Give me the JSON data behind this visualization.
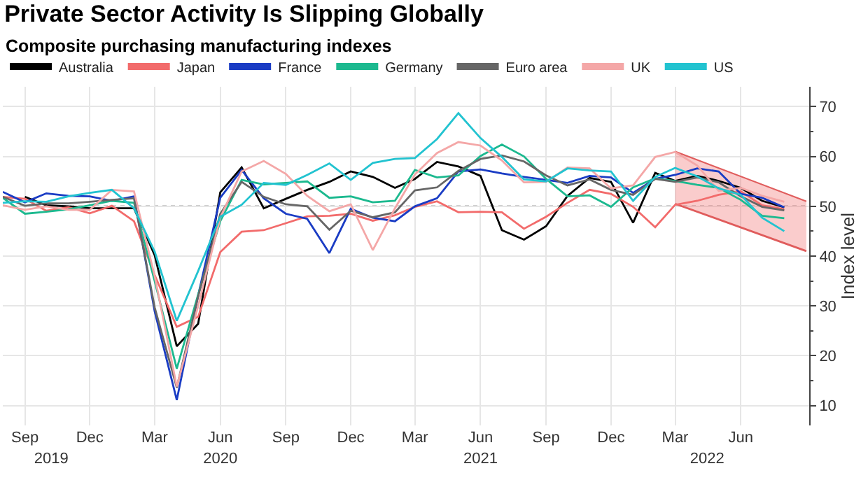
{
  "chart_data": {
    "type": "line",
    "title": "Private Sector Activity Is Slipping Globally",
    "subtitle": "Composite purchasing manufacturing indexes",
    "ylabel": "Index level",
    "x": [
      "2019-08",
      "2019-09",
      "2019-10",
      "2019-11",
      "2019-12",
      "2020-01",
      "2020-02",
      "2020-03",
      "2020-04",
      "2020-05",
      "2020-06",
      "2020-07",
      "2020-08",
      "2020-09",
      "2020-10",
      "2020-11",
      "2020-12",
      "2021-01",
      "2021-02",
      "2021-03",
      "2021-04",
      "2021-05",
      "2021-06",
      "2021-07",
      "2021-08",
      "2021-09",
      "2021-10",
      "2021-11",
      "2021-12",
      "2022-01",
      "2022-02",
      "2022-03",
      "2022-04",
      "2022-05",
      "2022-06",
      "2022-07",
      "2022-08"
    ],
    "series": [
      {
        "name": "Australia",
        "color": "#000000",
        "values": [
          null,
          51.9,
          50.2,
          50.0,
          49.6,
          49.6,
          49.6,
          40.2,
          21.9,
          26.4,
          52.8,
          57.8,
          49.6,
          51.5,
          53.3,
          54.9,
          57.0,
          55.9,
          53.7,
          55.5,
          58.9,
          58.0,
          56.1,
          45.2,
          43.3,
          46.0,
          52.1,
          55.7,
          54.9,
          46.7,
          56.7,
          55.1,
          56.1,
          55.1,
          53.7,
          51.1,
          49.8
        ]
      },
      {
        "name": "Japan",
        "color": "#f26b6b",
        "values": [
          51.9,
          51.5,
          49.1,
          49.8,
          48.6,
          50.1,
          47.0,
          36.2,
          25.8,
          27.8,
          40.8,
          44.9,
          45.2,
          46.6,
          48.0,
          48.1,
          48.5,
          47.1,
          48.2,
          49.9,
          51.0,
          48.8,
          48.9,
          48.8,
          45.5,
          47.9,
          50.7,
          53.3,
          52.5,
          49.9,
          45.8,
          50.3,
          51.1,
          52.3,
          53.0,
          50.2,
          49.4
        ]
      },
      {
        "name": "France",
        "color": "#1a3cc4",
        "values": [
          52.9,
          50.8,
          52.6,
          52.1,
          52.0,
          51.1,
          52.0,
          28.9,
          11.1,
          32.1,
          51.7,
          57.3,
          51.6,
          48.5,
          47.5,
          40.6,
          49.5,
          47.7,
          47.0,
          50.0,
          51.6,
          57.0,
          57.4,
          56.6,
          55.9,
          55.3,
          54.7,
          56.1,
          55.8,
          52.7,
          55.5,
          56.3,
          57.6,
          57.0,
          52.5,
          51.7,
          49.8
        ]
      },
      {
        "name": "Germany",
        "color": "#1cb98f",
        "values": [
          51.7,
          48.5,
          48.9,
          49.4,
          50.2,
          51.1,
          50.7,
          35.0,
          17.4,
          32.3,
          47.0,
          55.3,
          54.4,
          54.7,
          55.0,
          51.7,
          52.0,
          50.8,
          51.1,
          57.3,
          55.8,
          56.2,
          60.1,
          62.4,
          60.0,
          55.5,
          52.0,
          52.2,
          49.9,
          53.8,
          55.6,
          55.1,
          54.3,
          53.7,
          51.3,
          48.1,
          47.6
        ]
      },
      {
        "name": "Euro area",
        "color": "#666666",
        "values": [
          51.9,
          50.1,
          50.6,
          50.6,
          50.9,
          51.3,
          51.6,
          29.7,
          13.6,
          31.9,
          48.5,
          54.9,
          51.9,
          50.4,
          50.0,
          45.3,
          49.1,
          47.8,
          48.8,
          53.2,
          53.8,
          57.1,
          59.5,
          60.2,
          59.0,
          56.2,
          54.2,
          55.4,
          53.3,
          52.3,
          55.5,
          54.9,
          55.8,
          54.8,
          52.0,
          49.9,
          49.2
        ]
      },
      {
        "name": "UK",
        "color": "#f4a7a7",
        "values": [
          50.2,
          49.3,
          50.0,
          49.3,
          49.3,
          53.3,
          53.0,
          36.0,
          13.8,
          30.0,
          47.7,
          57.0,
          59.1,
          56.5,
          52.1,
          49.0,
          50.4,
          41.2,
          49.6,
          56.4,
          60.7,
          62.9,
          62.2,
          59.2,
          54.8,
          54.9,
          57.8,
          57.6,
          53.6,
          54.2,
          59.9,
          60.9,
          58.2,
          53.1,
          53.7,
          52.1,
          50.9
        ]
      },
      {
        "name": "US",
        "color": "#22c3d0",
        "values": [
          50.7,
          51.0,
          50.9,
          52.0,
          52.7,
          53.3,
          49.6,
          40.9,
          27.0,
          37.0,
          47.9,
          50.3,
          54.7,
          54.3,
          56.3,
          58.6,
          55.3,
          58.7,
          59.5,
          59.7,
          63.5,
          68.7,
          63.7,
          59.9,
          55.4,
          55.0,
          57.6,
          57.2,
          57.0,
          51.1,
          55.9,
          57.7,
          56.0,
          53.6,
          52.3,
          47.7,
          45.0
        ]
      },
      {
        "type": "line",
        "color": "#e05c5c",
        "x": [
          "2022-03-01",
          "2022-09-01"
        ],
        "values": [
          50.5,
          41
        ]
      },
      {
        "type": "area",
        "color": "#e05c5c",
        "x": [
          "2022-03-01",
          "2022-09-01"
        ],
        "values": [
          61,
          51
        ]
      }
    ],
    "xlim": [
      "2019-08-01",
      "2022-09-05"
    ],
    "xticks": [
      {
        "value": "2019-09-01",
        "label": "Sep"
      },
      {
        "value": "2019-12-01",
        "label": "Dec"
      },
      {
        "value": "2020-03-01",
        "label": "Mar"
      },
      {
        "value": "2020-06-01",
        "label": "Jun"
      },
      {
        "value": "2020-09-01",
        "label": "Sep"
      },
      {
        "value": "2020-12-01",
        "label": "Dec"
      },
      {
        "value": "2021-03-01",
        "label": "Mar"
      },
      {
        "value": "2021-06-01",
        "label": "Jun"
      },
      {
        "value": "2021-09-01",
        "label": "Sep"
      },
      {
        "value": "2021-12-01",
        "label": "Dec"
      },
      {
        "value": "2022-03-01",
        "label": "Mar"
      },
      {
        "value": "2022-06-01",
        "label": "Jun"
      }
    ],
    "x2lim": [
      "2019-08-01",
      "2022-09-05"
    ],
    "x2ticks": [
      {
        "value": "2019-10-08",
        "label": "2019"
      },
      {
        "value": "2020-06-01",
        "label": "2020"
      },
      {
        "value": "2021-06-01",
        "label": "2021"
      },
      {
        "value": "2022-04-15",
        "label": "2022"
      }
    ],
    "ylim": [
      6,
      74
    ],
    "yticks": [
      10,
      20,
      30,
      40,
      50,
      60,
      70
    ],
    "ref_lines": [
      {
        "axis": "y",
        "value": 50,
        "color": "#999999",
        "line_style": "dotted"
      }
    ],
    "grid": true,
    "legend": "top left",
    "marker": "none",
    "line_style": "solid"
  }
}
